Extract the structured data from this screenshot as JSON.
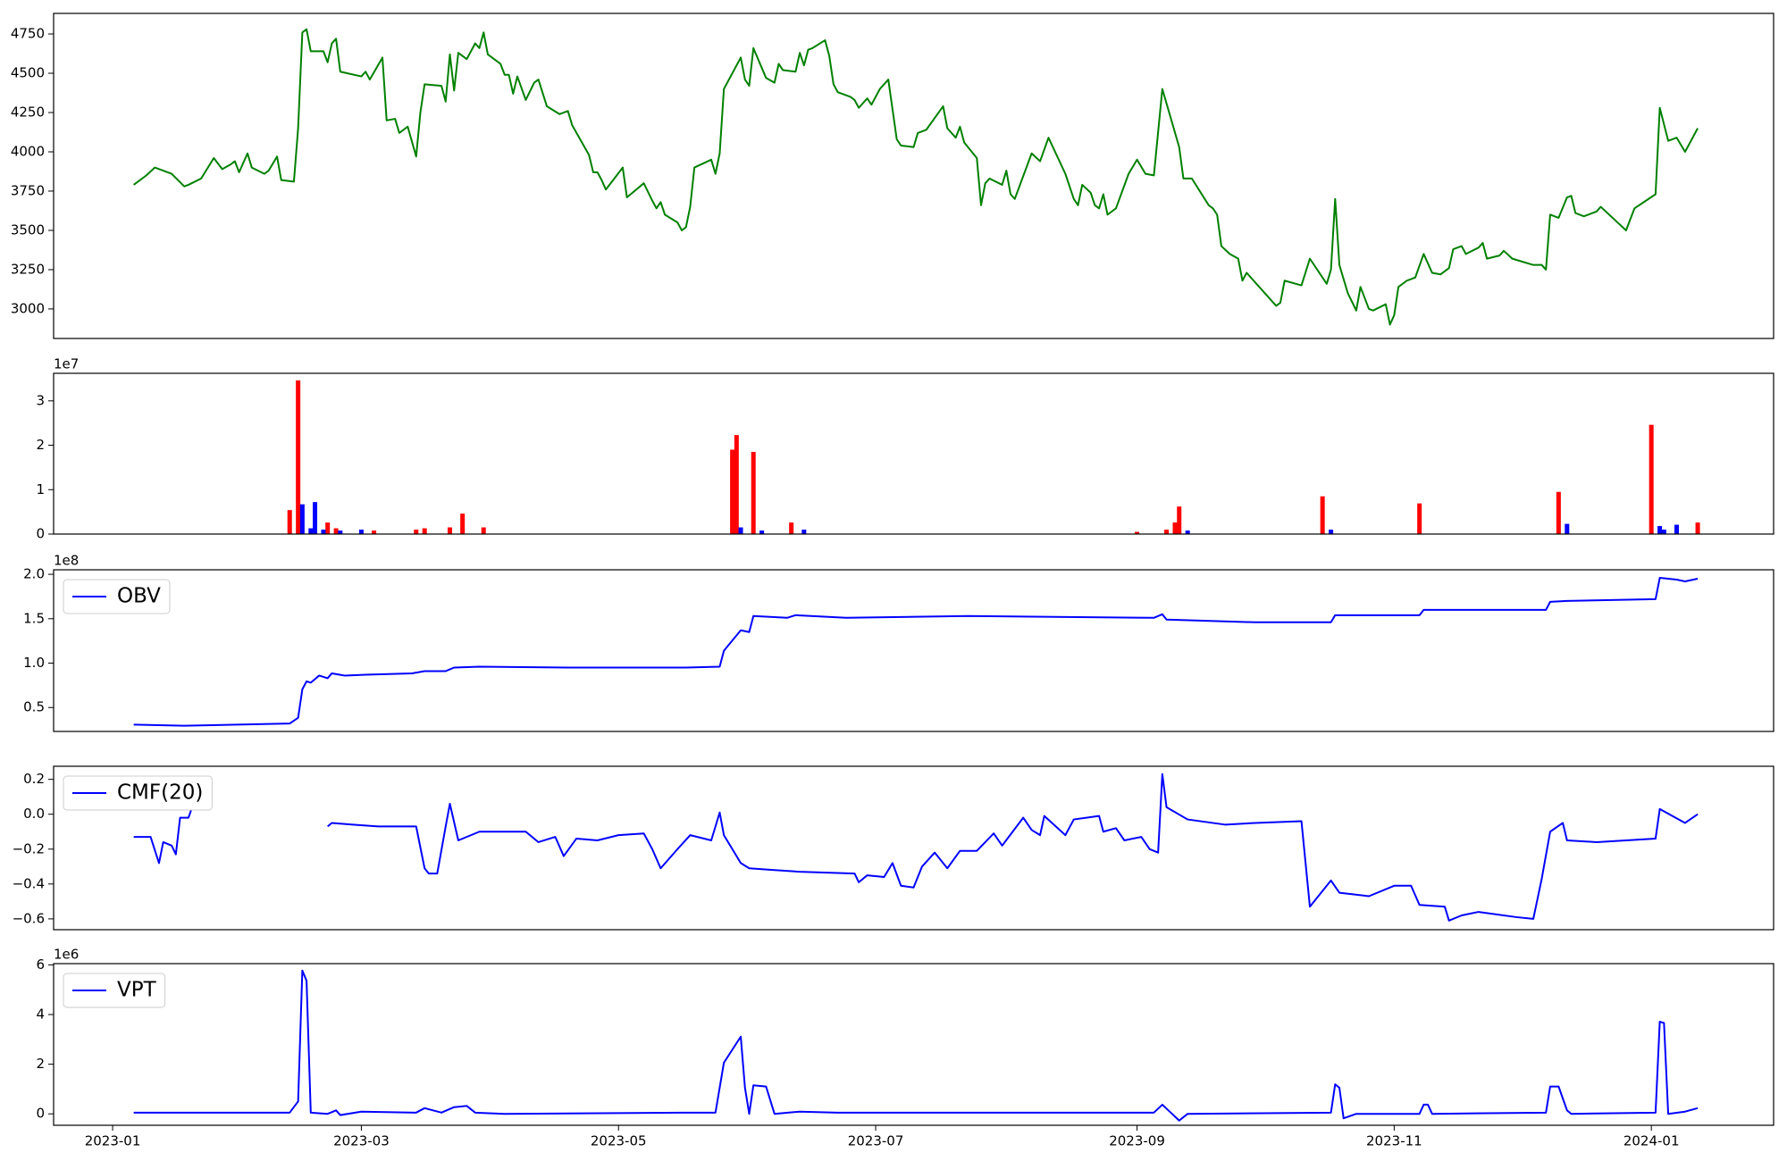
{
  "chart_data": [
    {
      "type": "line",
      "color": "green",
      "x": [
        5,
        8,
        10,
        14,
        17,
        18,
        21,
        24,
        26,
        28,
        29,
        30,
        32,
        33,
        36,
        37,
        39,
        40,
        43,
        44,
        45,
        46,
        47,
        50,
        51,
        52,
        53,
        54,
        59,
        60,
        61,
        64,
        65,
        67,
        68,
        70,
        72,
        73,
        74,
        78,
        79,
        80,
        81,
        82,
        84,
        86,
        87,
        88,
        89,
        92,
        93,
        94,
        95,
        96,
        98,
        100,
        101,
        103,
        106,
        108,
        109,
        113,
        114,
        115,
        116,
        117,
        121,
        122,
        126,
        128,
        129,
        130,
        131,
        134,
        135,
        136,
        137,
        138,
        142,
        143,
        144,
        145,
        149,
        150,
        151,
        152,
        155,
        157,
        158,
        159,
        162,
        163,
        164,
        165,
        166,
        169,
        170,
        171,
        172,
        175,
        176,
        177,
        179,
        180,
        182,
        184,
        186,
        187,
        190,
        191,
        193,
        197,
        198,
        200,
        201,
        202,
        205,
        206,
        207,
        208,
        211,
        212,
        213,
        214,
        218,
        220,
        222,
        226,
        228,
        229,
        230,
        232,
        233,
        234,
        235,
        236,
        238,
        241,
        243,
        245,
        247,
        249,
        253,
        254,
        256,
        260,
        261,
        262,
        263,
        265,
        267,
        268,
        269,
        276,
        277,
        278,
        282,
        284,
        288,
        289,
        290,
        291,
        293,
        295,
        296,
        298,
        299,
        302,
        303,
        304,
        305,
        307,
        309,
        311,
        313,
        315,
        317,
        318,
        320,
        321,
        324,
        325,
        326,
        329,
        330,
        332,
        337,
        339,
        340,
        341,
        343,
        345,
        346,
        347,
        349,
        352,
        353,
        359,
        361,
        366,
        367,
        369,
        371,
        373,
        376
      ],
      "values": [
        3790,
        3850,
        3900,
        3860,
        3780,
        3790,
        3830,
        3960,
        3890,
        3920,
        3940,
        3870,
        3990,
        3900,
        3860,
        3880,
        3970,
        3820,
        3810,
        4150,
        4760,
        4780,
        4640,
        4640,
        4570,
        4690,
        4720,
        4510,
        4480,
        4510,
        4460,
        4600,
        4200,
        4210,
        4120,
        4160,
        3970,
        4250,
        4430,
        4420,
        4320,
        4620,
        4390,
        4630,
        4590,
        4690,
        4660,
        4760,
        4620,
        4560,
        4490,
        4490,
        4370,
        4480,
        4330,
        4440,
        4460,
        4290,
        4240,
        4260,
        4170,
        3980,
        3870,
        3870,
        3820,
        3760,
        3900,
        3710,
        3800,
        3690,
        3640,
        3680,
        3600,
        3550,
        3500,
        3520,
        3650,
        3900,
        3950,
        3860,
        3990,
        4400,
        4600,
        4460,
        4420,
        4660,
        4470,
        4440,
        4560,
        4520,
        4510,
        4630,
        4550,
        4650,
        4660,
        4710,
        4610,
        4430,
        4380,
        4350,
        4330,
        4280,
        4340,
        4300,
        4400,
        4460,
        4080,
        4040,
        4030,
        4120,
        4140,
        4290,
        4150,
        4090,
        4160,
        4060,
        3960,
        3660,
        3800,
        3830,
        3790,
        3880,
        3730,
        3700,
        3990,
        3940,
        4090,
        3860,
        3700,
        3660,
        3790,
        3740,
        3660,
        3640,
        3730,
        3600,
        3640,
        3860,
        3950,
        3860,
        3850,
        4400,
        4030,
        3830,
        3830,
        3660,
        3640,
        3600,
        3400,
        3350,
        3320,
        3180,
        3230,
        3020,
        3040,
        3180,
        3150,
        3320,
        3160,
        3250,
        3700,
        3280,
        3100,
        2990,
        3140,
        3000,
        2990,
        3030,
        2900,
        2960,
        3140,
        3180,
        3200,
        3350,
        3230,
        3220,
        3260,
        3380,
        3400,
        3350,
        3390,
        3420,
        3320,
        3340,
        3370,
        3320,
        3280,
        3280,
        3250,
        3600,
        3580,
        3710,
        3720,
        3610,
        3590,
        3620,
        3650,
        3500,
        3640,
        3730,
        4280,
        4070,
        4090,
        4000,
        4150
      ],
      "xlim": [
        -14,
        394
      ],
      "ylim": [
        2812,
        4881
      ],
      "yticks": [
        3000,
        3250,
        3500,
        3750,
        4000,
        4250,
        4500,
        4750
      ]
    },
    {
      "type": "bar",
      "offset_label": "1e7",
      "series": [
        {
          "color": "red",
          "x": [
            42,
            44,
            51,
            53,
            62,
            72,
            74,
            80,
            83,
            88,
            147,
            148,
            152,
            161,
            243,
            250,
            252,
            253,
            287,
            310,
            343,
            365,
            376
          ],
          "values": [
            5400000,
            34600000,
            2600000,
            1300000,
            800000,
            1000000,
            1300000,
            1500000,
            4600000,
            1500000,
            19000000,
            22300000,
            18500000,
            2600000,
            500000,
            1000000,
            2600000,
            6200000,
            8500000,
            6900000,
            9500000,
            24600000,
            2600000
          ]
        },
        {
          "color": "blue",
          "x": [
            45,
            47,
            48,
            50,
            54,
            59,
            149,
            154,
            164,
            255,
            289,
            345,
            367,
            368,
            371
          ],
          "values": [
            6700000,
            1300000,
            7200000,
            1000000,
            800000,
            1000000,
            1500000,
            800000,
            1000000,
            800000,
            1000000,
            2300000,
            1800000,
            1000000,
            2100000
          ]
        }
      ],
      "xlim": [
        -14,
        394
      ],
      "ylim": [
        0,
        36200000
      ],
      "yticks": [
        0,
        {
          "value": 10000000,
          "label": "1"
        },
        {
          "value": 20000000,
          "label": "2"
        },
        {
          "value": 30000000,
          "label": "3"
        }
      ]
    },
    {
      "type": "line",
      "offset_label": "1e8",
      "legend": "upper left",
      "x": [
        5,
        17,
        42,
        44,
        45,
        46,
        47,
        49,
        51,
        52,
        55,
        60,
        71,
        74,
        79,
        81,
        87,
        109,
        136,
        144,
        145,
        149,
        151,
        152,
        160,
        162,
        174,
        203,
        247,
        249,
        250,
        271,
        289,
        290,
        310,
        311,
        340,
        341,
        345,
        366,
        367,
        371,
        373,
        376
      ],
      "series": [
        {
          "name": "OBV",
          "color": "blue",
          "values": [
            30800000,
            29500000,
            32000000,
            38500000,
            70500000,
            79500000,
            78000000,
            86000000,
            83000000,
            88500000,
            86000000,
            87000000,
            88500000,
            91000000,
            91000000,
            95000000,
            96000000,
            95000000,
            95000000,
            96000000,
            114000000,
            137000000,
            135000000,
            153000000,
            151000000,
            154000000,
            151000000,
            153000000,
            151000000,
            155000000,
            149000000,
            146000000,
            146000000,
            154000000,
            154000000,
            160000000,
            160000000,
            169000000,
            170000000,
            172000000,
            196000000,
            194000000,
            192000000,
            195000000
          ]
        }
      ],
      "xlim": [
        -14,
        394
      ],
      "ylim": [
        23100000,
        205100000
      ],
      "yticks": [
        {
          "value": 50000000,
          "label": "0.5"
        },
        {
          "value": 100000000,
          "label": "1.0"
        },
        {
          "value": 150000000,
          "label": "1.5"
        },
        {
          "value": 200000000,
          "label": "2.0"
        }
      ]
    },
    {
      "type": "line",
      "legend": "upper left",
      "x": [
        5,
        9,
        11,
        12,
        14,
        15,
        16,
        18,
        19,
        35,
        51,
        52,
        57,
        63,
        72,
        74,
        75,
        77,
        79,
        80,
        82,
        87,
        95,
        98,
        101,
        105,
        107,
        110,
        115,
        120,
        126,
        128,
        130,
        134,
        137,
        142,
        144,
        145,
        149,
        151,
        157,
        163,
        176,
        177,
        179,
        183,
        185,
        187,
        190,
        192,
        195,
        198,
        201,
        205,
        209,
        211,
        216,
        218,
        220,
        221,
        226,
        228,
        234,
        235,
        238,
        240,
        244,
        246,
        248,
        249,
        250,
        255,
        264,
        271,
        282,
        284,
        289,
        291,
        298,
        304,
        308,
        310,
        316,
        317,
        320,
        324,
        333,
        337,
        339,
        341,
        344,
        345,
        352,
        366,
        367,
        373,
        376
      ],
      "series": [
        {
          "name": "CMF(20)",
          "color": "blue",
          "values": [
            -0.13,
            -0.13,
            -0.28,
            -0.16,
            -0.18,
            -0.23,
            -0.02,
            -0.02,
            0.05,
            null,
            -0.07,
            -0.05,
            -0.06,
            -0.07,
            -0.07,
            -0.31,
            -0.34,
            -0.34,
            -0.07,
            0.06,
            -0.15,
            -0.1,
            -0.1,
            -0.1,
            -0.16,
            -0.13,
            -0.24,
            -0.14,
            -0.15,
            -0.12,
            -0.11,
            -0.2,
            -0.31,
            -0.2,
            -0.12,
            -0.15,
            0.01,
            -0.12,
            -0.28,
            -0.31,
            -0.32,
            -0.33,
            -0.34,
            -0.39,
            -0.35,
            -0.36,
            -0.28,
            -0.41,
            -0.42,
            -0.3,
            -0.22,
            -0.31,
            -0.21,
            -0.21,
            -0.11,
            -0.18,
            -0.02,
            -0.09,
            -0.12,
            -0.01,
            -0.12,
            -0.03,
            -0.01,
            -0.1,
            -0.08,
            -0.15,
            -0.13,
            -0.2,
            -0.22,
            0.23,
            0.04,
            -0.03,
            -0.06,
            -0.05,
            -0.04,
            -0.53,
            -0.38,
            -0.45,
            -0.47,
            -0.41,
            -0.41,
            -0.52,
            -0.53,
            -0.61,
            -0.58,
            -0.56,
            -0.59,
            -0.6,
            -0.37,
            -0.1,
            -0.05,
            -0.15,
            -0.16,
            -0.14,
            0.03,
            -0.05,
            0.0
          ]
        }
      ],
      "xlim": [
        -14,
        394
      ],
      "ylim": [
        -0.662,
        0.275
      ],
      "yticks": [
        {
          "value": -0.6,
          "label": "−0.6"
        },
        {
          "value": -0.4,
          "label": "−0.4"
        },
        {
          "value": -0.2,
          "label": "−0.2"
        },
        {
          "value": 0,
          "label": "0.0"
        },
        0.2
      ]
    },
    {
      "type": "line",
      "offset_label": "1e6",
      "legend": "upper left",
      "x": [
        5,
        42,
        44,
        45,
        46,
        47,
        51,
        53,
        54,
        59,
        72,
        74,
        78,
        81,
        84,
        86,
        93,
        136,
        143,
        145,
        149,
        150,
        151,
        152,
        155,
        157,
        163,
        172,
        247,
        249,
        251,
        253,
        255,
        289,
        290,
        291,
        292,
        295,
        310,
        311,
        312,
        313,
        340,
        341,
        343,
        345,
        346,
        366,
        367,
        368,
        369,
        373,
        376
      ],
      "series": [
        {
          "name": "VPT",
          "color": "blue",
          "values": [
            50000,
            50000,
            500000,
            5770000,
            5360000,
            50000,
            0,
            140000,
            -50000,
            90000,
            50000,
            230000,
            50000,
            270000,
            320000,
            50000,
            0,
            50000,
            50000,
            2060000,
            3110000,
            1050000,
            0,
            1150000,
            1100000,
            0,
            90000,
            50000,
            50000,
            370000,
            50000,
            -270000,
            0,
            50000,
            1190000,
            1050000,
            -180000,
            0,
            0,
            370000,
            370000,
            0,
            50000,
            1100000,
            1100000,
            140000,
            0,
            50000,
            3710000,
            3660000,
            0,
            90000,
            230000
          ]
        }
      ],
      "xlim": [
        -14,
        394
      ],
      "ylim": [
        -460000,
        6050000
      ],
      "yticks": [
        0,
        {
          "value": 2000000,
          "label": "2"
        },
        {
          "value": 4000000,
          "label": "4"
        },
        {
          "value": 6000000,
          "label": "6"
        }
      ],
      "xticks": [
        {
          "value": 0,
          "label": "2023-01"
        },
        {
          "value": 59,
          "label": "2023-03"
        },
        {
          "value": 120,
          "label": "2023-05"
        },
        {
          "value": 181,
          "label": "2023-07"
        },
        {
          "value": 243,
          "label": "2023-09"
        },
        {
          "value": 304,
          "label": "2023-11"
        },
        {
          "value": 365,
          "label": "2024-01"
        }
      ]
    }
  ]
}
